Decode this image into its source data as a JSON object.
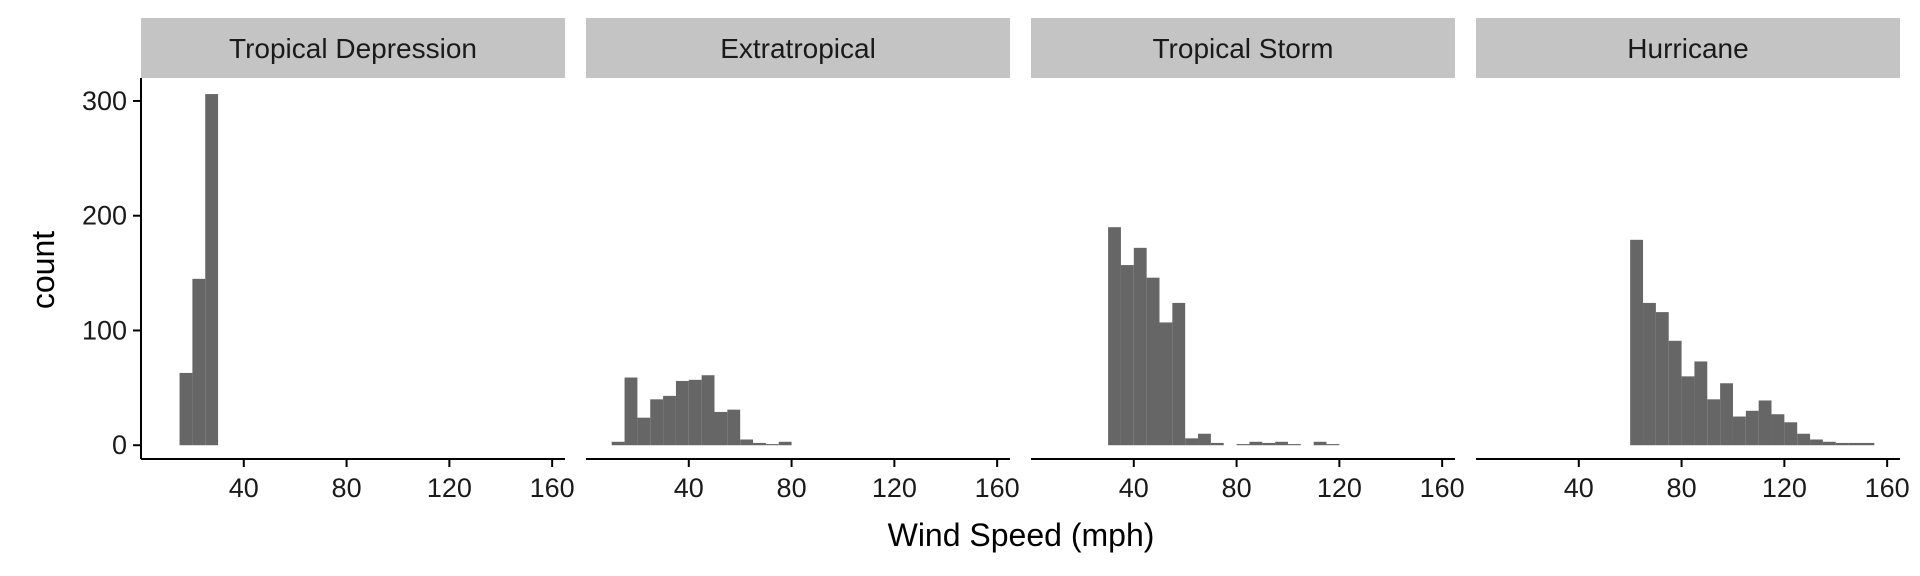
{
  "chart_data": {
    "type": "bar",
    "layout": "faceted histogram, 4 panels in one row, shared axes",
    "xlabel": "Wind Speed (mph)",
    "ylabel": "count",
    "xlim": [
      0,
      165
    ],
    "ylim": [
      -12,
      320
    ],
    "x_ticks": [
      40,
      80,
      120,
      160
    ],
    "y_ticks": [
      0,
      100,
      200,
      300
    ],
    "bin_width": 5,
    "grid": false,
    "colors": {
      "bar": "#666666",
      "strip": "#c4c4c4",
      "axis": "#000000"
    },
    "panels": [
      {
        "title": "Tropical Depression",
        "bins": [
          {
            "x0": 15,
            "x1": 20,
            "count": 63
          },
          {
            "x0": 20,
            "x1": 25,
            "count": 145
          },
          {
            "x0": 25,
            "x1": 30,
            "count": 306
          }
        ]
      },
      {
        "title": "Extratropical",
        "bins": [
          {
            "x0": 10,
            "x1": 15,
            "count": 3
          },
          {
            "x0": 15,
            "x1": 20,
            "count": 59
          },
          {
            "x0": 20,
            "x1": 25,
            "count": 24
          },
          {
            "x0": 25,
            "x1": 30,
            "count": 40
          },
          {
            "x0": 30,
            "x1": 35,
            "count": 43
          },
          {
            "x0": 35,
            "x1": 40,
            "count": 56
          },
          {
            "x0": 40,
            "x1": 45,
            "count": 57
          },
          {
            "x0": 45,
            "x1": 50,
            "count": 61
          },
          {
            "x0": 50,
            "x1": 55,
            "count": 29
          },
          {
            "x0": 55,
            "x1": 60,
            "count": 31
          },
          {
            "x0": 60,
            "x1": 65,
            "count": 5
          },
          {
            "x0": 65,
            "x1": 70,
            "count": 2
          },
          {
            "x0": 70,
            "x1": 75,
            "count": 1
          },
          {
            "x0": 75,
            "x1": 80,
            "count": 3
          }
        ]
      },
      {
        "title": "Tropical Storm",
        "bins": [
          {
            "x0": 30,
            "x1": 35,
            "count": 190
          },
          {
            "x0": 35,
            "x1": 40,
            "count": 157
          },
          {
            "x0": 40,
            "x1": 45,
            "count": 172
          },
          {
            "x0": 45,
            "x1": 50,
            "count": 146
          },
          {
            "x0": 50,
            "x1": 55,
            "count": 107
          },
          {
            "x0": 55,
            "x1": 60,
            "count": 124
          },
          {
            "x0": 60,
            "x1": 65,
            "count": 6
          },
          {
            "x0": 65,
            "x1": 70,
            "count": 10
          },
          {
            "x0": 70,
            "x1": 75,
            "count": 2
          },
          {
            "x0": 75,
            "x1": 80,
            "count": 0
          },
          {
            "x0": 80,
            "x1": 85,
            "count": 1
          },
          {
            "x0": 85,
            "x1": 90,
            "count": 3
          },
          {
            "x0": 90,
            "x1": 95,
            "count": 2
          },
          {
            "x0": 95,
            "x1": 100,
            "count": 3
          },
          {
            "x0": 100,
            "x1": 105,
            "count": 1
          },
          {
            "x0": 105,
            "x1": 110,
            "count": 0
          },
          {
            "x0": 110,
            "x1": 115,
            "count": 3
          },
          {
            "x0": 115,
            "x1": 120,
            "count": 1
          }
        ]
      },
      {
        "title": "Hurricane",
        "bins": [
          {
            "x0": 60,
            "x1": 65,
            "count": 179
          },
          {
            "x0": 65,
            "x1": 70,
            "count": 124
          },
          {
            "x0": 70,
            "x1": 75,
            "count": 116
          },
          {
            "x0": 75,
            "x1": 80,
            "count": 91
          },
          {
            "x0": 80,
            "x1": 85,
            "count": 60
          },
          {
            "x0": 85,
            "x1": 90,
            "count": 73
          },
          {
            "x0": 90,
            "x1": 95,
            "count": 40
          },
          {
            "x0": 95,
            "x1": 100,
            "count": 54
          },
          {
            "x0": 100,
            "x1": 105,
            "count": 25
          },
          {
            "x0": 105,
            "x1": 110,
            "count": 30
          },
          {
            "x0": 110,
            "x1": 115,
            "count": 39
          },
          {
            "x0": 115,
            "x1": 120,
            "count": 27
          },
          {
            "x0": 120,
            "x1": 125,
            "count": 20
          },
          {
            "x0": 125,
            "x1": 130,
            "count": 10
          },
          {
            "x0": 130,
            "x1": 135,
            "count": 5
          },
          {
            "x0": 135,
            "x1": 140,
            "count": 3
          },
          {
            "x0": 140,
            "x1": 145,
            "count": 2
          },
          {
            "x0": 145,
            "x1": 150,
            "count": 2
          },
          {
            "x0": 150,
            "x1": 155,
            "count": 2
          }
        ]
      }
    ]
  }
}
